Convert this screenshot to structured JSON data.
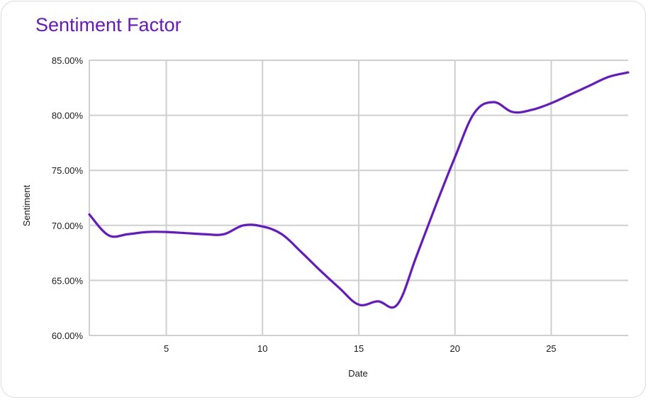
{
  "chart_data": {
    "type": "line",
    "title": "Sentiment Factor",
    "xlabel": "Date",
    "ylabel": "Sentiment",
    "xlim": [
      1,
      29
    ],
    "ylim": [
      60,
      85
    ],
    "x_ticks": [
      5,
      10,
      15,
      20,
      25
    ],
    "x_tick_labels": [
      "5",
      "10",
      "15",
      "20",
      "25"
    ],
    "y_ticks": [
      60,
      65,
      70,
      75,
      80,
      85
    ],
    "y_tick_labels": [
      "60.00%",
      "65.00%",
      "70.00%",
      "75.00%",
      "80.00%",
      "85.00%"
    ],
    "grid": true,
    "legend": "none",
    "series": [
      {
        "color": "#6419c8",
        "x": [
          1,
          2,
          3,
          4,
          5,
          6,
          7,
          8,
          9,
          10,
          11,
          12,
          13,
          14,
          15,
          16,
          17,
          18,
          19,
          20,
          21,
          22,
          23,
          24,
          25,
          26,
          27,
          28,
          29
        ],
        "values": [
          71.0,
          69.1,
          69.2,
          69.4,
          69.4,
          69.3,
          69.2,
          69.2,
          70.0,
          69.9,
          69.2,
          67.6,
          65.9,
          64.3,
          62.8,
          63.1,
          62.8,
          67.2,
          71.8,
          76.2,
          80.2,
          81.2,
          80.3,
          80.5,
          81.1,
          81.9,
          82.7,
          83.5,
          83.9
        ]
      }
    ]
  }
}
